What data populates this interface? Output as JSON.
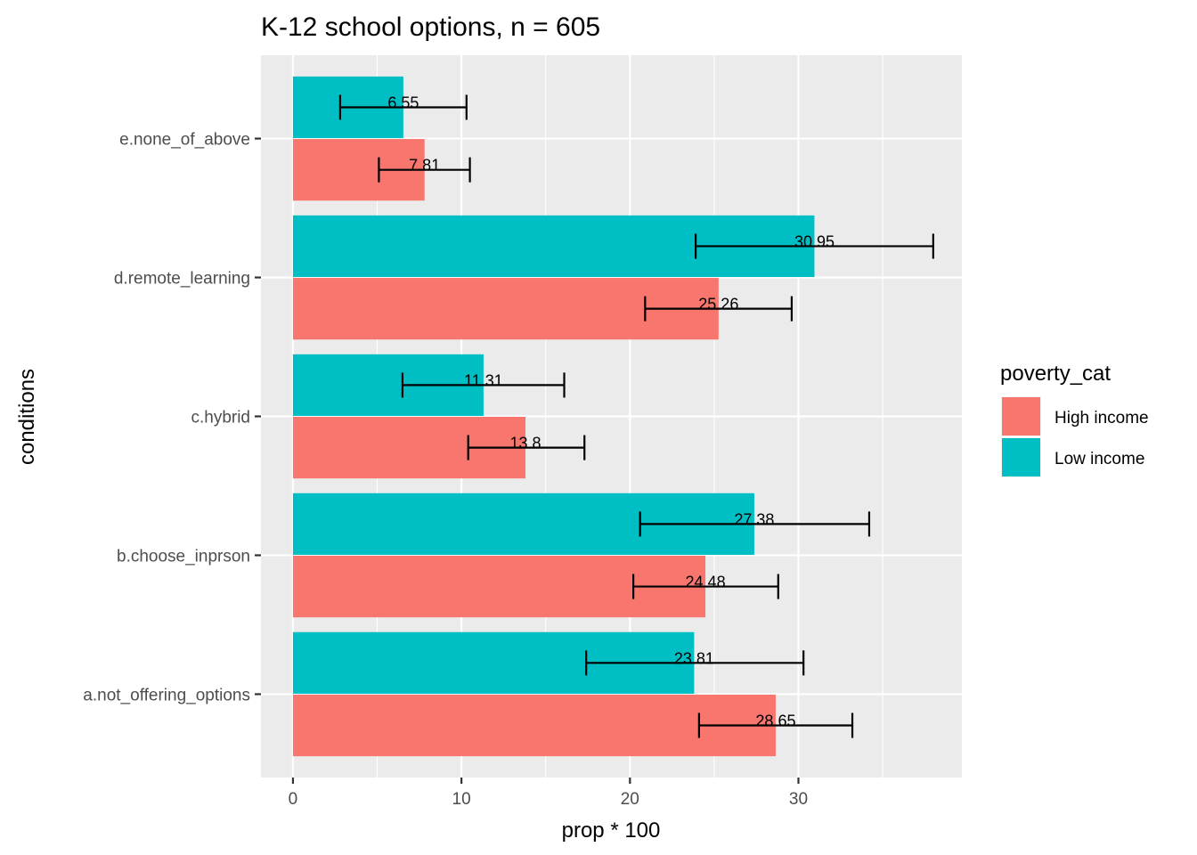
{
  "chart_data": {
    "type": "bar",
    "orientation": "horizontal",
    "title": "K-12 school options, n = 605",
    "xlabel": "prop * 100",
    "ylabel": "conditions",
    "xlim": [
      -1.9,
      39.7
    ],
    "x_ticks": [
      0,
      10,
      20,
      30
    ],
    "grid": true,
    "legend_title": "poverty_cat",
    "legend_position": "right",
    "categories": [
      "a.not_offering_options",
      "b.choose_inprson",
      "c.hybrid",
      "d.remote_learning",
      "e.none_of_above"
    ],
    "series": [
      {
        "name": "High income",
        "color": "#F8766D",
        "values": [
          28.65,
          24.48,
          13.8,
          25.26,
          7.81
        ],
        "labels": [
          "28.65",
          "24.48",
          "13.8",
          "25.26",
          "7.81"
        ],
        "err_low": [
          24.1,
          20.2,
          10.4,
          20.9,
          5.1
        ],
        "err_high": [
          33.2,
          28.8,
          17.3,
          29.6,
          10.5
        ]
      },
      {
        "name": "Low income",
        "color": "#00BFC4",
        "values": [
          23.81,
          27.38,
          11.31,
          30.95,
          6.55
        ],
        "labels": [
          "23.81",
          "27.38",
          "11.31",
          "30.95",
          "6.55"
        ],
        "err_low": [
          17.4,
          20.6,
          6.5,
          23.9,
          2.8
        ],
        "err_high": [
          30.3,
          34.2,
          16.1,
          38.0,
          10.3
        ]
      }
    ]
  }
}
